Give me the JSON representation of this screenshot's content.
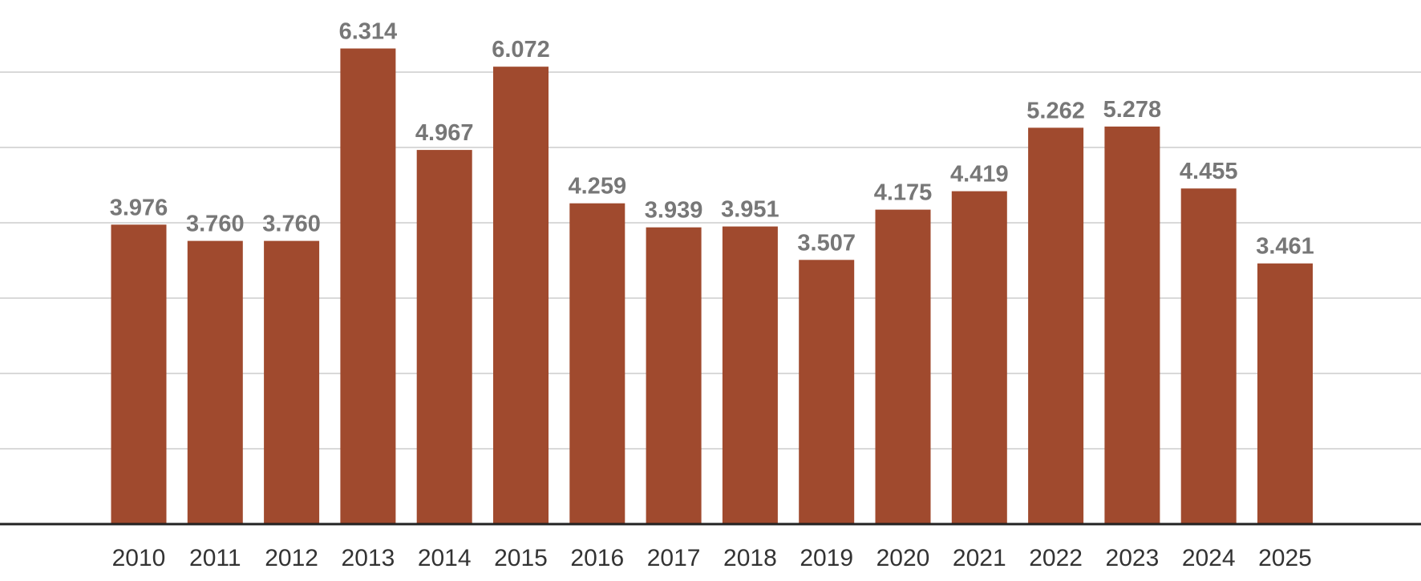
{
  "chart_data": {
    "type": "bar",
    "title": "",
    "xlabel": "",
    "ylabel": "",
    "categories": [
      "2010",
      "2011",
      "2012",
      "2013",
      "2014",
      "2015",
      "2016",
      "2017",
      "2018",
      "2019",
      "2020",
      "2021",
      "2022",
      "2023",
      "2024",
      "2025"
    ],
    "values": [
      3.976,
      3.76,
      3.76,
      6.314,
      4.967,
      6.072,
      4.259,
      3.939,
      3.951,
      3.507,
      4.175,
      4.419,
      5.262,
      5.278,
      4.455,
      3.461
    ],
    "value_labels": [
      "3.976",
      "3.760",
      "3.760",
      "6.314",
      "4.967",
      "6.072",
      "4.259",
      "3.939",
      "3.951",
      "3.507",
      "4.175",
      "4.419",
      "5.262",
      "5.278",
      "4.455",
      "3.461"
    ],
    "ylim": [
      0,
      7
    ],
    "y_gridlines": [
      1,
      2,
      3,
      4,
      5,
      6,
      7
    ],
    "grid": true,
    "legend": "none",
    "colors": {
      "bar": "#a04a2e",
      "gridline": "#d9d9d9",
      "axis": "#222222",
      "value_label": "#777777",
      "tick_label": "#333333"
    }
  }
}
